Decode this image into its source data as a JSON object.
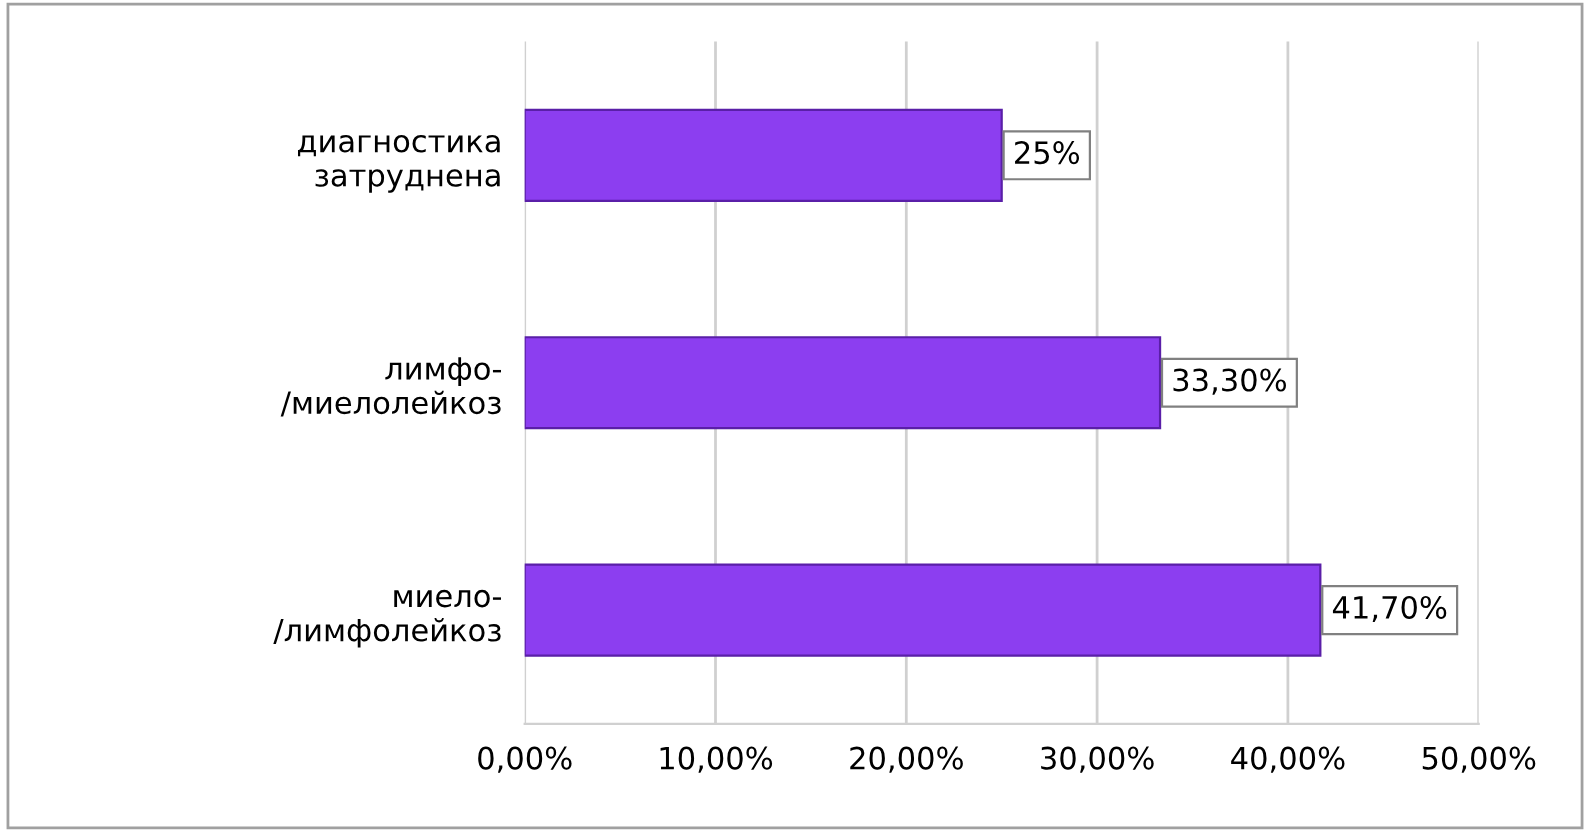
{
  "chart_data": {
    "type": "bar",
    "orientation": "horizontal",
    "categories": [
      "диагностика\nзатруднена",
      "лимфо-\n/миелолейкоз",
      "миело-\n/лимфолейкоз"
    ],
    "values": [
      25,
      33.3,
      41.7
    ],
    "value_labels": [
      "25%",
      "33,30%",
      "41,70%"
    ],
    "color": "#8c3ef0",
    "xlim": [
      0,
      50
    ],
    "xticks": [
      {
        "value": 0,
        "label": "0,00%"
      },
      {
        "value": 10,
        "label": "10,00%"
      },
      {
        "value": 20,
        "label": "20,00%"
      },
      {
        "value": 30,
        "label": "30,00%"
      },
      {
        "value": 40,
        "label": "40,00%"
      },
      {
        "value": 50,
        "label": "50,00%"
      }
    ],
    "grid": "x",
    "legend": false
  }
}
